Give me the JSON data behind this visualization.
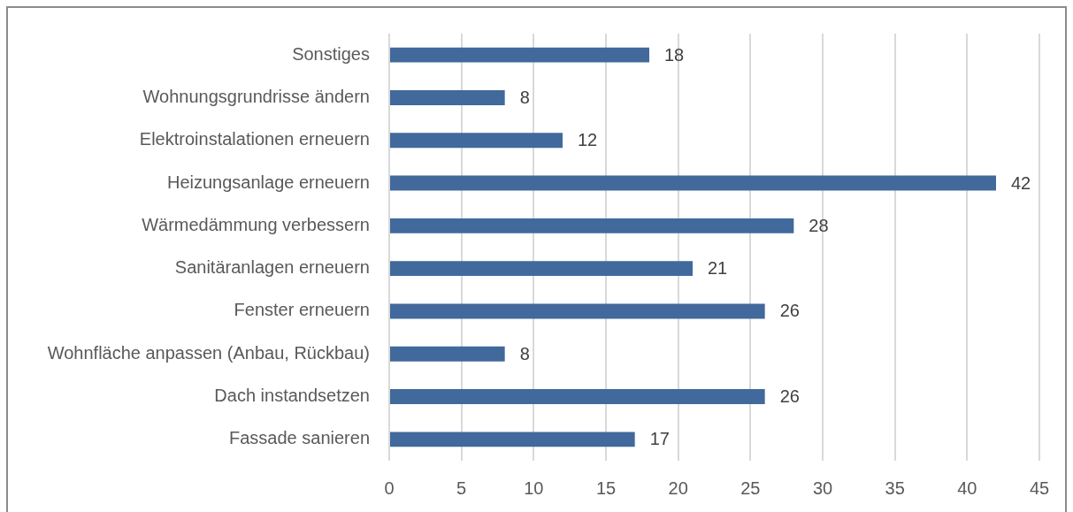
{
  "chart_data": {
    "type": "bar",
    "orientation": "horizontal",
    "categories": [
      "Sonstiges",
      "Wohnungsgrundrisse ändern",
      "Elektroinstalationen erneuern",
      "Heizungsanlage erneuern",
      "Wärmedämmung verbessern",
      "Sanitäranlagen erneuern",
      "Fenster erneuern",
      "Wohnfläche anpassen (Anbau, Rückbau)",
      "Dach instandsetzen",
      "Fassade sanieren"
    ],
    "values": [
      18,
      8,
      12,
      42,
      28,
      21,
      26,
      8,
      26,
      17
    ],
    "color": "#41699c",
    "xlim": [
      0,
      45
    ],
    "xticks": [
      0,
      5,
      10,
      15,
      20,
      25,
      30,
      35,
      40,
      45
    ],
    "grid": "x",
    "data_labels": true
  }
}
